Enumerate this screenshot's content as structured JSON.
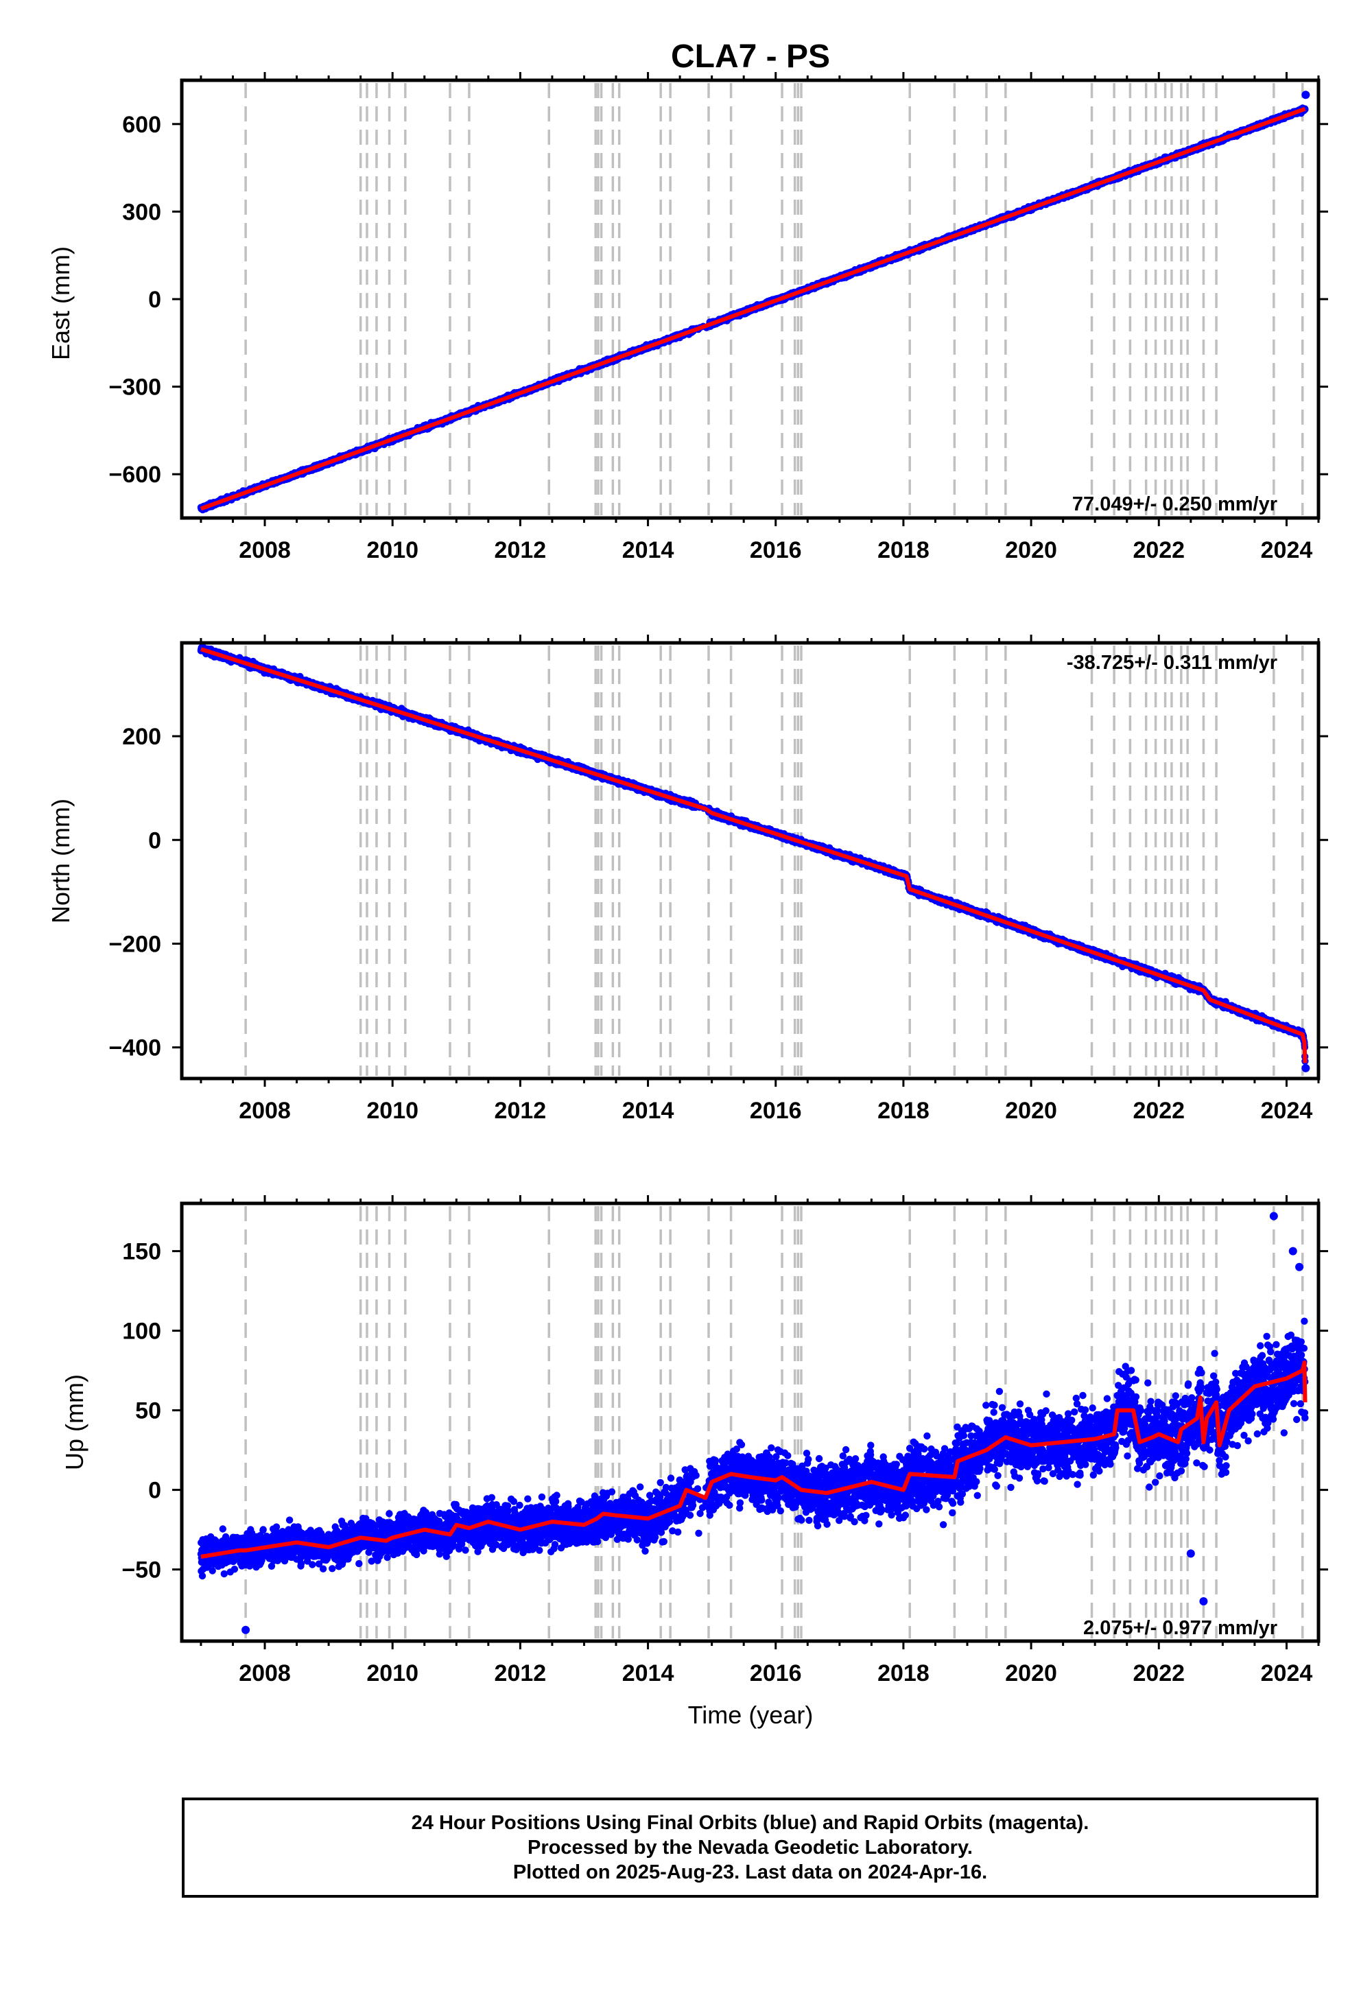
{
  "title": "CLA7 - PS",
  "footer": {
    "line1": "24 Hour Positions Using Final Orbits (blue) and Rapid Orbits (magenta).",
    "line2": "Processed by the Nevada Geodetic Laboratory.",
    "line3": "Plotted on 2025-Aug-23. Last data on 2024-Apr-16."
  },
  "colors": {
    "final_orbit_points": "#0000ff",
    "model_fit": "#ff0000",
    "event_lines": "#c0c0c0"
  },
  "chart_data": [
    {
      "type": "scatter",
      "panel": "east",
      "ylabel": "East (mm)",
      "xlabel": "",
      "xlim": [
        2006.7,
        2024.5
      ],
      "ylim": [
        -750,
        750
      ],
      "xticks": [
        "2008",
        "2010",
        "2012",
        "2014",
        "2016",
        "2018",
        "2020",
        "2022",
        "2024"
      ],
      "yticks": [
        "600",
        "300",
        "0",
        "−300",
        "−600"
      ],
      "ytick_values": [
        600,
        300,
        0,
        -300,
        -600
      ],
      "rate_label": "77.049+/- 0.250 mm/yr",
      "rate_position": "bottom-right",
      "series": [
        {
          "role": "daily-positions",
          "start": [
            2007.0,
            -720
          ],
          "end": [
            2024.29,
            655
          ],
          "scatter_mm": 5
        },
        {
          "role": "model-fit",
          "x": [
            2007.0,
            2024.29
          ],
          "y": [
            -718,
            652
          ]
        }
      ],
      "outliers": [
        [
          2024.3,
          700
        ]
      ]
    },
    {
      "type": "scatter",
      "panel": "north",
      "ylabel": "North (mm)",
      "xlabel": "",
      "xlim": [
        2006.7,
        2024.5
      ],
      "ylim": [
        -460,
        380
      ],
      "xticks": [
        "2008",
        "2010",
        "2012",
        "2014",
        "2016",
        "2018",
        "2020",
        "2022",
        "2024"
      ],
      "yticks": [
        "200",
        "0",
        "−200",
        "−400"
      ],
      "ytick_values": [
        200,
        0,
        -200,
        -400
      ],
      "rate_label": "-38.725+/- 0.311 mm/yr",
      "rate_position": "top-right",
      "series": [
        {
          "role": "daily-positions",
          "scatter_mm": 4
        },
        {
          "role": "model-fit",
          "x": [
            2007.0,
            2014.9,
            2015.0,
            2018.05,
            2018.1,
            2022.7,
            2022.8,
            2024.25,
            2024.28,
            2024.29
          ],
          "y": [
            368,
            60,
            52,
            -70,
            -95,
            -290,
            -308,
            -375,
            -390,
            -430
          ]
        }
      ],
      "outliers": [
        [
          2024.3,
          -440
        ]
      ]
    },
    {
      "type": "scatter",
      "panel": "up",
      "ylabel": "Up (mm)",
      "xlabel": "Time (year)",
      "xlim": [
        2006.7,
        2024.5
      ],
      "ylim": [
        -95,
        180
      ],
      "xticks": [
        "2008",
        "2010",
        "2012",
        "2014",
        "2016",
        "2018",
        "2020",
        "2022",
        "2024"
      ],
      "yticks": [
        "150",
        "100",
        "50",
        "0",
        "−50"
      ],
      "ytick_values": [
        150,
        100,
        50,
        0,
        -50
      ],
      "rate_label": "2.075+/- 0.977 mm/yr",
      "rate_position": "bottom-right",
      "series": [
        {
          "role": "daily-positions",
          "scatter_mm": 9
        },
        {
          "role": "model-fit",
          "x": [
            2007.0,
            2007.6,
            2007.7,
            2008.5,
            2009.0,
            2009.5,
            2009.9,
            2010.0,
            2010.5,
            2010.9,
            2011.0,
            2011.2,
            2011.5,
            2012.0,
            2012.5,
            2013.0,
            2013.2,
            2013.3,
            2013.5,
            2014.0,
            2014.5,
            2014.6,
            2014.9,
            2015.0,
            2015.3,
            2015.6,
            2016.0,
            2016.1,
            2016.4,
            2016.8,
            2017.5,
            2018.0,
            2018.1,
            2018.8,
            2018.85,
            2019.3,
            2019.6,
            2020.0,
            2020.5,
            2021.0,
            2021.3,
            2021.35,
            2021.6,
            2021.7,
            2021.9,
            2022.0,
            2022.3,
            2022.35,
            2022.6,
            2022.65,
            2022.7,
            2022.75,
            2022.9,
            2022.95,
            2023.1,
            2023.5,
            2024.0,
            2024.25,
            2024.28,
            2024.29
          ],
          "y": [
            -42,
            -38,
            -38,
            -33,
            -36,
            -30,
            -32,
            -30,
            -25,
            -28,
            -22,
            -24,
            -20,
            -25,
            -20,
            -22,
            -18,
            -15,
            -16,
            -18,
            -10,
            0,
            -5,
            5,
            10,
            8,
            6,
            8,
            0,
            -2,
            5,
            0,
            10,
            8,
            18,
            25,
            33,
            28,
            30,
            32,
            35,
            50,
            50,
            30,
            33,
            35,
            30,
            38,
            45,
            58,
            30,
            45,
            55,
            28,
            50,
            65,
            70,
            75,
            80,
            55
          ]
        }
      ],
      "outliers": [
        [
          2007.7,
          -88
        ],
        [
          2022.5,
          -40
        ],
        [
          2022.7,
          -70
        ],
        [
          2023.8,
          172
        ],
        [
          2024.1,
          150
        ],
        [
          2024.2,
          140
        ]
      ]
    }
  ],
  "event_lines": [
    2007.7,
    2009.5,
    2009.6,
    2009.75,
    2009.95,
    2010.2,
    2010.9,
    2011.2,
    2012.45,
    2013.18,
    2013.22,
    2013.27,
    2013.45,
    2013.55,
    2014.2,
    2014.35,
    2014.95,
    2015.3,
    2016.1,
    2016.3,
    2016.35,
    2016.4,
    2018.1,
    2018.8,
    2019.3,
    2019.6,
    2020.95,
    2021.3,
    2021.55,
    2021.8,
    2021.95,
    2022.1,
    2022.2,
    2022.35,
    2022.45,
    2022.7,
    2022.9,
    2023.8,
    2024.25
  ]
}
